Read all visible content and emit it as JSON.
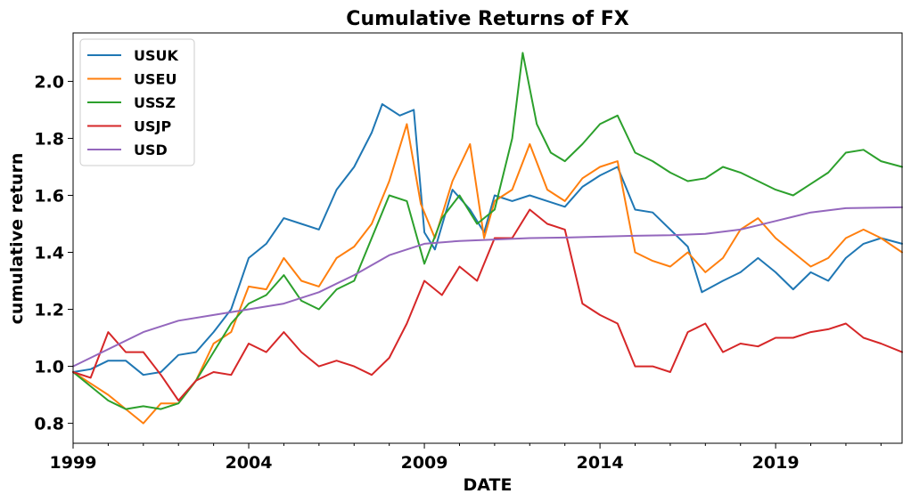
{
  "chart_data": {
    "type": "line",
    "title": "Cumulative Returns of FX",
    "xlabel": "DATE",
    "ylabel": "cumulative return",
    "xlim": [
      1999.0,
      2022.6
    ],
    "ylim": [
      0.73,
      2.17
    ],
    "x_ticks": [
      {
        "value": 1999,
        "label": "1999"
      },
      {
        "value": 2004,
        "label": "2004"
      },
      {
        "value": 2009,
        "label": "2009"
      },
      {
        "value": 2014,
        "label": "2014"
      },
      {
        "value": 2019,
        "label": "2019"
      }
    ],
    "y_ticks": [
      {
        "value": 0.8,
        "label": "0.8"
      },
      {
        "value": 1.0,
        "label": "1.0"
      },
      {
        "value": 1.2,
        "label": "1.2"
      },
      {
        "value": 1.4,
        "label": "1.4"
      },
      {
        "value": 1.6,
        "label": "1.6"
      },
      {
        "value": 1.8,
        "label": "1.8"
      },
      {
        "value": 2.0,
        "label": "2.0"
      }
    ],
    "legend_position": "top-left",
    "grid": false,
    "series": [
      {
        "name": "USUK",
        "color": "#1f77b4",
        "points": [
          [
            1999.0,
            0.98
          ],
          [
            1999.5,
            0.99
          ],
          [
            2000.0,
            1.02
          ],
          [
            2000.5,
            1.02
          ],
          [
            2001.0,
            0.97
          ],
          [
            2001.5,
            0.98
          ],
          [
            2002.0,
            1.04
          ],
          [
            2002.5,
            1.05
          ],
          [
            2003.0,
            1.12
          ],
          [
            2003.5,
            1.2
          ],
          [
            2004.0,
            1.38
          ],
          [
            2004.5,
            1.43
          ],
          [
            2005.0,
            1.52
          ],
          [
            2005.5,
            1.5
          ],
          [
            2006.0,
            1.48
          ],
          [
            2006.5,
            1.62
          ],
          [
            2007.0,
            1.7
          ],
          [
            2007.5,
            1.82
          ],
          [
            2007.8,
            1.92
          ],
          [
            2008.3,
            1.88
          ],
          [
            2008.7,
            1.9
          ],
          [
            2009.0,
            1.47
          ],
          [
            2009.3,
            1.41
          ],
          [
            2009.8,
            1.62
          ],
          [
            2010.3,
            1.55
          ],
          [
            2010.7,
            1.47
          ],
          [
            2011.0,
            1.6
          ],
          [
            2011.5,
            1.58
          ],
          [
            2012.0,
            1.6
          ],
          [
            2012.5,
            1.58
          ],
          [
            2013.0,
            1.56
          ],
          [
            2013.5,
            1.63
          ],
          [
            2014.0,
            1.67
          ],
          [
            2014.5,
            1.7
          ],
          [
            2015.0,
            1.55
          ],
          [
            2015.5,
            1.54
          ],
          [
            2016.0,
            1.48
          ],
          [
            2016.5,
            1.42
          ],
          [
            2016.9,
            1.26
          ],
          [
            2017.5,
            1.3
          ],
          [
            2018.0,
            1.33
          ],
          [
            2018.5,
            1.38
          ],
          [
            2019.0,
            1.33
          ],
          [
            2019.5,
            1.27
          ],
          [
            2020.0,
            1.33
          ],
          [
            2020.5,
            1.3
          ],
          [
            2021.0,
            1.38
          ],
          [
            2021.5,
            1.43
          ],
          [
            2022.0,
            1.45
          ],
          [
            2022.6,
            1.43
          ]
        ]
      },
      {
        "name": "USEU",
        "color": "#ff7f0e",
        "points": [
          [
            1999.0,
            0.98
          ],
          [
            1999.5,
            0.94
          ],
          [
            2000.0,
            0.9
          ],
          [
            2000.5,
            0.85
          ],
          [
            2001.0,
            0.8
          ],
          [
            2001.5,
            0.87
          ],
          [
            2002.0,
            0.87
          ],
          [
            2002.5,
            0.95
          ],
          [
            2003.0,
            1.08
          ],
          [
            2003.5,
            1.12
          ],
          [
            2004.0,
            1.28
          ],
          [
            2004.5,
            1.27
          ],
          [
            2005.0,
            1.38
          ],
          [
            2005.5,
            1.3
          ],
          [
            2006.0,
            1.28
          ],
          [
            2006.5,
            1.38
          ],
          [
            2007.0,
            1.42
          ],
          [
            2007.5,
            1.5
          ],
          [
            2008.0,
            1.65
          ],
          [
            2008.5,
            1.85
          ],
          [
            2008.9,
            1.57
          ],
          [
            2009.3,
            1.45
          ],
          [
            2009.8,
            1.65
          ],
          [
            2010.3,
            1.78
          ],
          [
            2010.7,
            1.45
          ],
          [
            2011.0,
            1.58
          ],
          [
            2011.5,
            1.62
          ],
          [
            2012.0,
            1.78
          ],
          [
            2012.5,
            1.62
          ],
          [
            2013.0,
            1.58
          ],
          [
            2013.5,
            1.66
          ],
          [
            2014.0,
            1.7
          ],
          [
            2014.5,
            1.72
          ],
          [
            2015.0,
            1.4
          ],
          [
            2015.5,
            1.37
          ],
          [
            2016.0,
            1.35
          ],
          [
            2016.5,
            1.4
          ],
          [
            2017.0,
            1.33
          ],
          [
            2017.5,
            1.38
          ],
          [
            2018.0,
            1.48
          ],
          [
            2018.5,
            1.52
          ],
          [
            2019.0,
            1.45
          ],
          [
            2019.5,
            1.4
          ],
          [
            2020.0,
            1.35
          ],
          [
            2020.5,
            1.38
          ],
          [
            2021.0,
            1.45
          ],
          [
            2021.5,
            1.48
          ],
          [
            2022.0,
            1.45
          ],
          [
            2022.6,
            1.4
          ]
        ]
      },
      {
        "name": "USSZ",
        "color": "#2ca02c",
        "points": [
          [
            1999.0,
            0.98
          ],
          [
            1999.5,
            0.93
          ],
          [
            2000.0,
            0.88
          ],
          [
            2000.5,
            0.85
          ],
          [
            2001.0,
            0.86
          ],
          [
            2001.5,
            0.85
          ],
          [
            2002.0,
            0.87
          ],
          [
            2002.5,
            0.95
          ],
          [
            2003.0,
            1.05
          ],
          [
            2003.5,
            1.15
          ],
          [
            2004.0,
            1.22
          ],
          [
            2004.5,
            1.25
          ],
          [
            2005.0,
            1.32
          ],
          [
            2005.5,
            1.23
          ],
          [
            2006.0,
            1.2
          ],
          [
            2006.5,
            1.27
          ],
          [
            2007.0,
            1.3
          ],
          [
            2007.5,
            1.45
          ],
          [
            2008.0,
            1.6
          ],
          [
            2008.5,
            1.58
          ],
          [
            2009.0,
            1.36
          ],
          [
            2009.5,
            1.52
          ],
          [
            2010.0,
            1.6
          ],
          [
            2010.5,
            1.5
          ],
          [
            2011.0,
            1.55
          ],
          [
            2011.5,
            1.8
          ],
          [
            2011.8,
            2.1
          ],
          [
            2012.2,
            1.85
          ],
          [
            2012.6,
            1.75
          ],
          [
            2013.0,
            1.72
          ],
          [
            2013.5,
            1.78
          ],
          [
            2014.0,
            1.85
          ],
          [
            2014.5,
            1.88
          ],
          [
            2015.0,
            1.75
          ],
          [
            2015.5,
            1.72
          ],
          [
            2016.0,
            1.68
          ],
          [
            2016.5,
            1.65
          ],
          [
            2017.0,
            1.66
          ],
          [
            2017.5,
            1.7
          ],
          [
            2018.0,
            1.68
          ],
          [
            2018.5,
            1.65
          ],
          [
            2019.0,
            1.62
          ],
          [
            2019.5,
            1.6
          ],
          [
            2020.0,
            1.64
          ],
          [
            2020.5,
            1.68
          ],
          [
            2021.0,
            1.75
          ],
          [
            2021.5,
            1.76
          ],
          [
            2022.0,
            1.72
          ],
          [
            2022.6,
            1.7
          ]
        ]
      },
      {
        "name": "USJP",
        "color": "#d62728",
        "points": [
          [
            1999.0,
            0.98
          ],
          [
            1999.5,
            0.96
          ],
          [
            2000.0,
            1.12
          ],
          [
            2000.5,
            1.05
          ],
          [
            2001.0,
            1.05
          ],
          [
            2001.5,
            0.97
          ],
          [
            2002.0,
            0.88
          ],
          [
            2002.5,
            0.95
          ],
          [
            2003.0,
            0.98
          ],
          [
            2003.5,
            0.97
          ],
          [
            2004.0,
            1.08
          ],
          [
            2004.5,
            1.05
          ],
          [
            2005.0,
            1.12
          ],
          [
            2005.5,
            1.05
          ],
          [
            2006.0,
            1.0
          ],
          [
            2006.5,
            1.02
          ],
          [
            2007.0,
            1.0
          ],
          [
            2007.5,
            0.97
          ],
          [
            2008.0,
            1.03
          ],
          [
            2008.5,
            1.15
          ],
          [
            2009.0,
            1.3
          ],
          [
            2009.5,
            1.25
          ],
          [
            2010.0,
            1.35
          ],
          [
            2010.5,
            1.3
          ],
          [
            2011.0,
            1.45
          ],
          [
            2011.5,
            1.45
          ],
          [
            2012.0,
            1.55
          ],
          [
            2012.5,
            1.5
          ],
          [
            2013.0,
            1.48
          ],
          [
            2013.5,
            1.22
          ],
          [
            2014.0,
            1.18
          ],
          [
            2014.5,
            1.15
          ],
          [
            2015.0,
            1.0
          ],
          [
            2015.5,
            1.0
          ],
          [
            2016.0,
            0.98
          ],
          [
            2016.5,
            1.12
          ],
          [
            2017.0,
            1.15
          ],
          [
            2017.5,
            1.05
          ],
          [
            2018.0,
            1.08
          ],
          [
            2018.5,
            1.07
          ],
          [
            2019.0,
            1.1
          ],
          [
            2019.5,
            1.1
          ],
          [
            2020.0,
            1.12
          ],
          [
            2020.5,
            1.13
          ],
          [
            2021.0,
            1.15
          ],
          [
            2021.5,
            1.1
          ],
          [
            2022.0,
            1.08
          ],
          [
            2022.6,
            1.05
          ]
        ]
      },
      {
        "name": "USD",
        "color": "#9467bd",
        "points": [
          [
            1999.0,
            1.0
          ],
          [
            2000.0,
            1.06
          ],
          [
            2001.0,
            1.12
          ],
          [
            2002.0,
            1.16
          ],
          [
            2003.0,
            1.18
          ],
          [
            2004.0,
            1.2
          ],
          [
            2005.0,
            1.22
          ],
          [
            2006.0,
            1.26
          ],
          [
            2007.0,
            1.32
          ],
          [
            2008.0,
            1.39
          ],
          [
            2009.0,
            1.43
          ],
          [
            2010.0,
            1.44
          ],
          [
            2011.0,
            1.445
          ],
          [
            2012.0,
            1.45
          ],
          [
            2013.0,
            1.452
          ],
          [
            2014.0,
            1.455
          ],
          [
            2015.0,
            1.458
          ],
          [
            2016.0,
            1.46
          ],
          [
            2017.0,
            1.465
          ],
          [
            2018.0,
            1.48
          ],
          [
            2019.0,
            1.51
          ],
          [
            2020.0,
            1.54
          ],
          [
            2021.0,
            1.555
          ],
          [
            2022.0,
            1.557
          ],
          [
            2022.6,
            1.558
          ]
        ]
      }
    ]
  }
}
